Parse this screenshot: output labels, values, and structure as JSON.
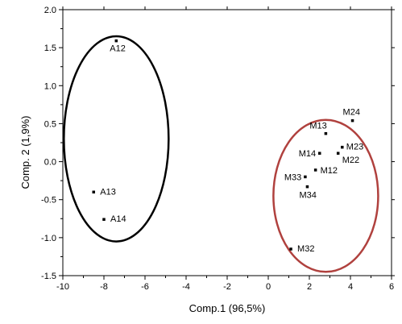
{
  "chart_data": {
    "type": "scatter",
    "xlabel": "Comp.1 (96,5%)",
    "ylabel": "Comp. 2 (1,9%)",
    "xlim": [
      -10,
      6
    ],
    "ylim": [
      -1.5,
      2.0
    ],
    "x_ticks": [
      -10,
      -8,
      -6,
      -4,
      -2,
      0,
      2,
      4,
      6
    ],
    "x_tick_labels": [
      "-10",
      "-8",
      "-6",
      "-4",
      "-2",
      "0",
      "2",
      "4",
      "6"
    ],
    "y_ticks": [
      -1.5,
      -1.0,
      -0.5,
      0.0,
      0.5,
      1.0,
      1.5,
      2.0
    ],
    "y_tick_labels": [
      "-1.5",
      "-1.0",
      "-0.5",
      "0.0",
      "0.5",
      "1.0",
      "1.5",
      "2.0"
    ],
    "grid": false,
    "points": [
      {
        "label": "A12",
        "x": -7.4,
        "y": 1.59
      },
      {
        "label": "A13",
        "x": -8.5,
        "y": -0.4
      },
      {
        "label": "A14",
        "x": -8.0,
        "y": -0.76
      },
      {
        "label": "M24",
        "x": 4.1,
        "y": 0.54
      },
      {
        "label": "M13",
        "x": 2.8,
        "y": 0.37
      },
      {
        "label": "M23",
        "x": 3.6,
        "y": 0.19
      },
      {
        "label": "M14",
        "x": 2.5,
        "y": 0.11
      },
      {
        "label": "M22",
        "x": 3.4,
        "y": 0.11
      },
      {
        "label": "M12",
        "x": 2.3,
        "y": -0.11
      },
      {
        "label": "M33",
        "x": 1.8,
        "y": -0.2
      },
      {
        "label": "M34",
        "x": 1.9,
        "y": -0.33
      },
      {
        "label": "M32",
        "x": 1.1,
        "y": -1.15
      }
    ],
    "groups": [
      {
        "center": [
          -7.4,
          0.3
        ],
        "rx": 2.55,
        "ry": 1.35,
        "color": "#000000"
      },
      {
        "center": [
          2.8,
          -0.45
        ],
        "rx": 2.55,
        "ry": 1.0,
        "color": "#b0413e"
      }
    ]
  }
}
